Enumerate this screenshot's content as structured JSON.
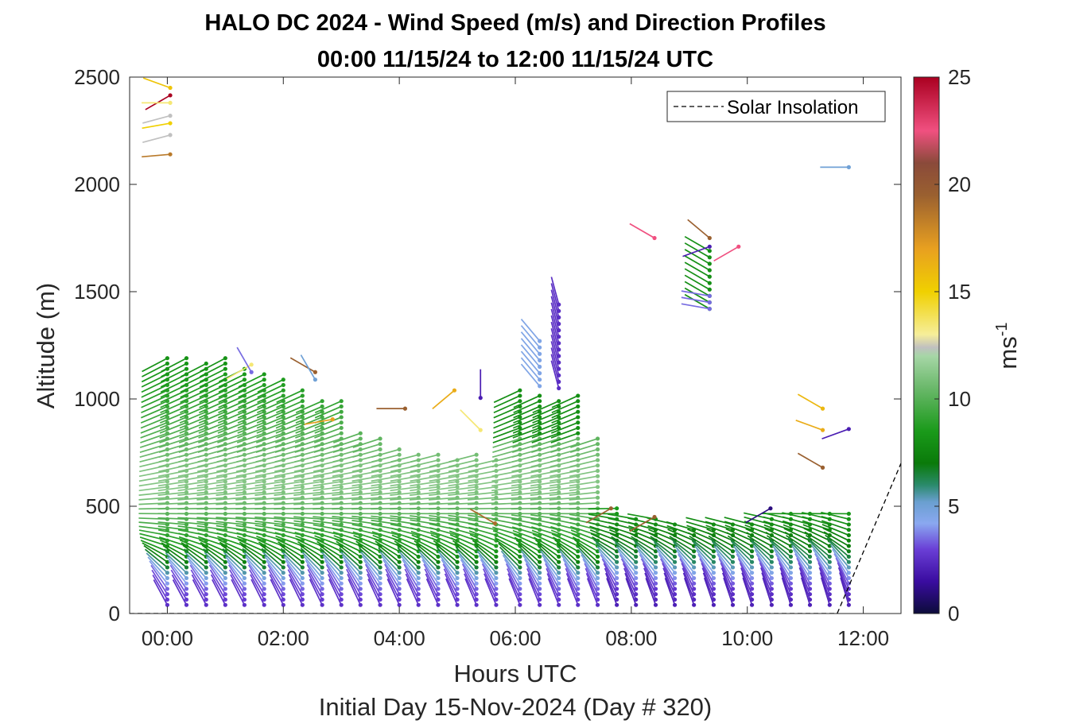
{
  "chart_data": {
    "type": "wind-barb-profile",
    "title": "HALO DC 2024 - Wind Speed (m/s) and Direction Profiles",
    "subtitle": "00:00 11/15/24 to 12:00 11/15/24  UTC",
    "xlabel": "Hours UTC",
    "xlabel2": "Initial Day 15-Nov-2024 (Day # 320)",
    "ylabel": "Altitude (m)",
    "xlim": [
      -0.65,
      12.65
    ],
    "ylim": [
      0,
      2500
    ],
    "x_ticks": [
      0,
      2,
      4,
      6,
      8,
      10,
      12
    ],
    "x_tick_labels": [
      "00:00",
      "02:00",
      "04:00",
      "06:00",
      "08:00",
      "10:00",
      "12:00"
    ],
    "y_ticks": [
      0,
      500,
      1000,
      1500,
      2000,
      2500
    ],
    "y_tick_labels": [
      "0",
      "500",
      "1000",
      "1500",
      "2000",
      "2500"
    ],
    "colorbar": {
      "label": "ms-1",
      "label_main": "ms",
      "label_sup": "-1",
      "range": [
        0,
        25
      ],
      "ticks": [
        0,
        5,
        10,
        15,
        20,
        25
      ],
      "tick_labels": [
        "0",
        "5",
        "10",
        "15",
        "20",
        "25"
      ],
      "stops": [
        {
          "v": 0,
          "c": "#0c0c3a"
        },
        {
          "v": 1.5,
          "c": "#3a0ca0"
        },
        {
          "v": 3,
          "c": "#6a3fd6"
        },
        {
          "v": 4.2,
          "c": "#8aa8f0"
        },
        {
          "v": 5.2,
          "c": "#6a9fd0"
        },
        {
          "v": 6,
          "c": "#2a8a6a"
        },
        {
          "v": 7,
          "c": "#0a7a0a"
        },
        {
          "v": 8.5,
          "c": "#1a9a1a"
        },
        {
          "v": 10.5,
          "c": "#6ab86a"
        },
        {
          "v": 12,
          "c": "#a6d6a6"
        },
        {
          "v": 12.4,
          "c": "#c0c0c0"
        },
        {
          "v": 13,
          "c": "#f6ee9a"
        },
        {
          "v": 15,
          "c": "#f0d000"
        },
        {
          "v": 17,
          "c": "#e8a020"
        },
        {
          "v": 19.5,
          "c": "#9a6030"
        },
        {
          "v": 21,
          "c": "#8a4a3a"
        },
        {
          "v": 22.5,
          "c": "#f05080"
        },
        {
          "v": 25,
          "c": "#aa0020"
        }
      ]
    },
    "legend": {
      "label": "Solar Insolation",
      "location": "top-right",
      "style": "dashed",
      "color": "#000000"
    },
    "solar_insolation": {
      "x": [
        -0.65,
        11.55,
        12.65
      ],
      "y": [
        0,
        0,
        700
      ]
    },
    "profile_times": [
      0,
      0.33,
      0.67,
      1,
      1.33,
      1.67,
      2,
      2.33,
      2.67,
      3,
      3.33,
      3.67,
      4,
      4.33,
      4.67,
      5,
      5.33,
      5.67,
      6.08,
      6.42,
      6.75,
      7.08,
      7.42,
      7.75,
      8.08,
      8.42,
      8.75,
      9.08,
      9.42,
      9.75,
      10.08,
      10.42,
      10.75,
      11.08,
      11.42,
      11.75
    ],
    "profile_tops": [
      1210,
      1210,
      1170,
      1210,
      1160,
      1120,
      1090,
      1050,
      1010,
      990,
      860,
      820,
      780,
      760,
      740,
      730,
      740,
      720,
      1040,
      1020,
      1000,
      1030,
      830,
      500,
      460,
      440,
      420,
      410,
      420,
      420,
      430,
      460,
      470,
      480,
      480,
      480
    ],
    "scattered_points": [
      {
        "t": 0.05,
        "alt": 2450,
        "dir": 290,
        "spd": 15.5
      },
      {
        "t": 0.05,
        "alt": 2415,
        "dir": 240,
        "spd": 25
      },
      {
        "t": 0.05,
        "alt": 2380,
        "dir": 270,
        "spd": 13.5
      },
      {
        "t": 0.05,
        "alt": 2320,
        "dir": 255,
        "spd": 12.4
      },
      {
        "t": 0.05,
        "alt": 2285,
        "dir": 260,
        "spd": 15
      },
      {
        "t": 0.05,
        "alt": 2230,
        "dir": 255,
        "spd": 12.4
      },
      {
        "t": 0.05,
        "alt": 2140,
        "dir": 265,
        "spd": 18.5
      },
      {
        "t": 1.45,
        "alt": 1160,
        "dir": 240,
        "spd": 13.5
      },
      {
        "t": 1.45,
        "alt": 1125,
        "dir": 330,
        "spd": 3.5
      },
      {
        "t": 2.55,
        "alt": 1125,
        "dir": 300,
        "spd": 19.5
      },
      {
        "t": 2.55,
        "alt": 1090,
        "dir": 330,
        "spd": 5
      },
      {
        "t": 2.85,
        "alt": 905,
        "dir": 260,
        "spd": 17
      },
      {
        "t": 4.1,
        "alt": 955,
        "dir": 270,
        "spd": 19.5
      },
      {
        "t": 4.95,
        "alt": 1040,
        "dir": 230,
        "spd": 16.5
      },
      {
        "t": 5.4,
        "alt": 1005,
        "dir": 0,
        "spd": 2
      },
      {
        "t": 5.4,
        "alt": 855,
        "dir": 315,
        "spd": 13.5
      },
      {
        "t": 5.65,
        "alt": 420,
        "dir": 300,
        "spd": 19
      },
      {
        "t": 7.65,
        "alt": 490,
        "dir": 240,
        "spd": 19.5
      },
      {
        "t": 8.4,
        "alt": 1750,
        "dir": 300,
        "spd": 22.5
      },
      {
        "t": 8.4,
        "alt": 450,
        "dir": 240,
        "spd": 19.5
      },
      {
        "t": 9.35,
        "alt": 1750,
        "dir": 310,
        "spd": 19.5
      },
      {
        "t": 9.35,
        "alt": 1710,
        "dir": 250,
        "spd": 2
      },
      {
        "t": 9.85,
        "alt": 1710,
        "dir": 240,
        "spd": 22.5
      },
      {
        "t": 10.4,
        "alt": 490,
        "dir": 240,
        "spd": 1
      },
      {
        "t": 11.3,
        "alt": 955,
        "dir": 300,
        "spd": 16
      },
      {
        "t": 11.3,
        "alt": 855,
        "dir": 290,
        "spd": 16.5
      },
      {
        "t": 11.3,
        "alt": 680,
        "dir": 300,
        "spd": 19.5
      },
      {
        "t": 11.75,
        "alt": 2080,
        "dir": 270,
        "spd": 5
      },
      {
        "t": 11.75,
        "alt": 860,
        "dir": 250,
        "spd": 2
      }
    ],
    "column_segments": [
      {
        "t": 6.42,
        "alt": [
          1060,
          1270
        ],
        "dir": 320,
        "spd": 4.5
      },
      {
        "t": 6.75,
        "alt": [
          1050,
          1460
        ],
        "dir": 345,
        "spd": 2.5
      },
      {
        "t": 9.35,
        "alt": [
          1420,
          1700
        ],
        "dir": 300,
        "spd": 8
      },
      {
        "t": 9.35,
        "alt": [
          1420,
          1480
        ],
        "dir": 280,
        "spd": 3.5
      }
    ]
  }
}
